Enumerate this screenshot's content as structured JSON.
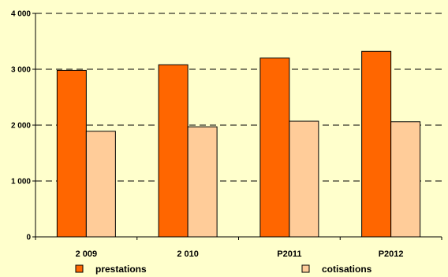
{
  "chart_data": {
    "type": "bar",
    "categories": [
      "2 009",
      "2 010",
      "P2011",
      "P2012"
    ],
    "series": [
      {
        "name": "prestations",
        "values": [
          2980,
          3080,
          3200,
          3320
        ],
        "color": "#FF6600"
      },
      {
        "name": "cotisations",
        "values": [
          1890,
          1970,
          2070,
          2060
        ],
        "color": "#FFCC99"
      }
    ],
    "ylim": [
      0,
      4000
    ],
    "yticks": [
      0,
      1000,
      2000,
      3000,
      4000
    ],
    "ytick_labels": [
      "0",
      "1 000",
      "2 000",
      "3 000",
      "4 000"
    ],
    "grid": "dashed horizontal",
    "legend_position": "bottom",
    "background": "#FFFFCC"
  }
}
